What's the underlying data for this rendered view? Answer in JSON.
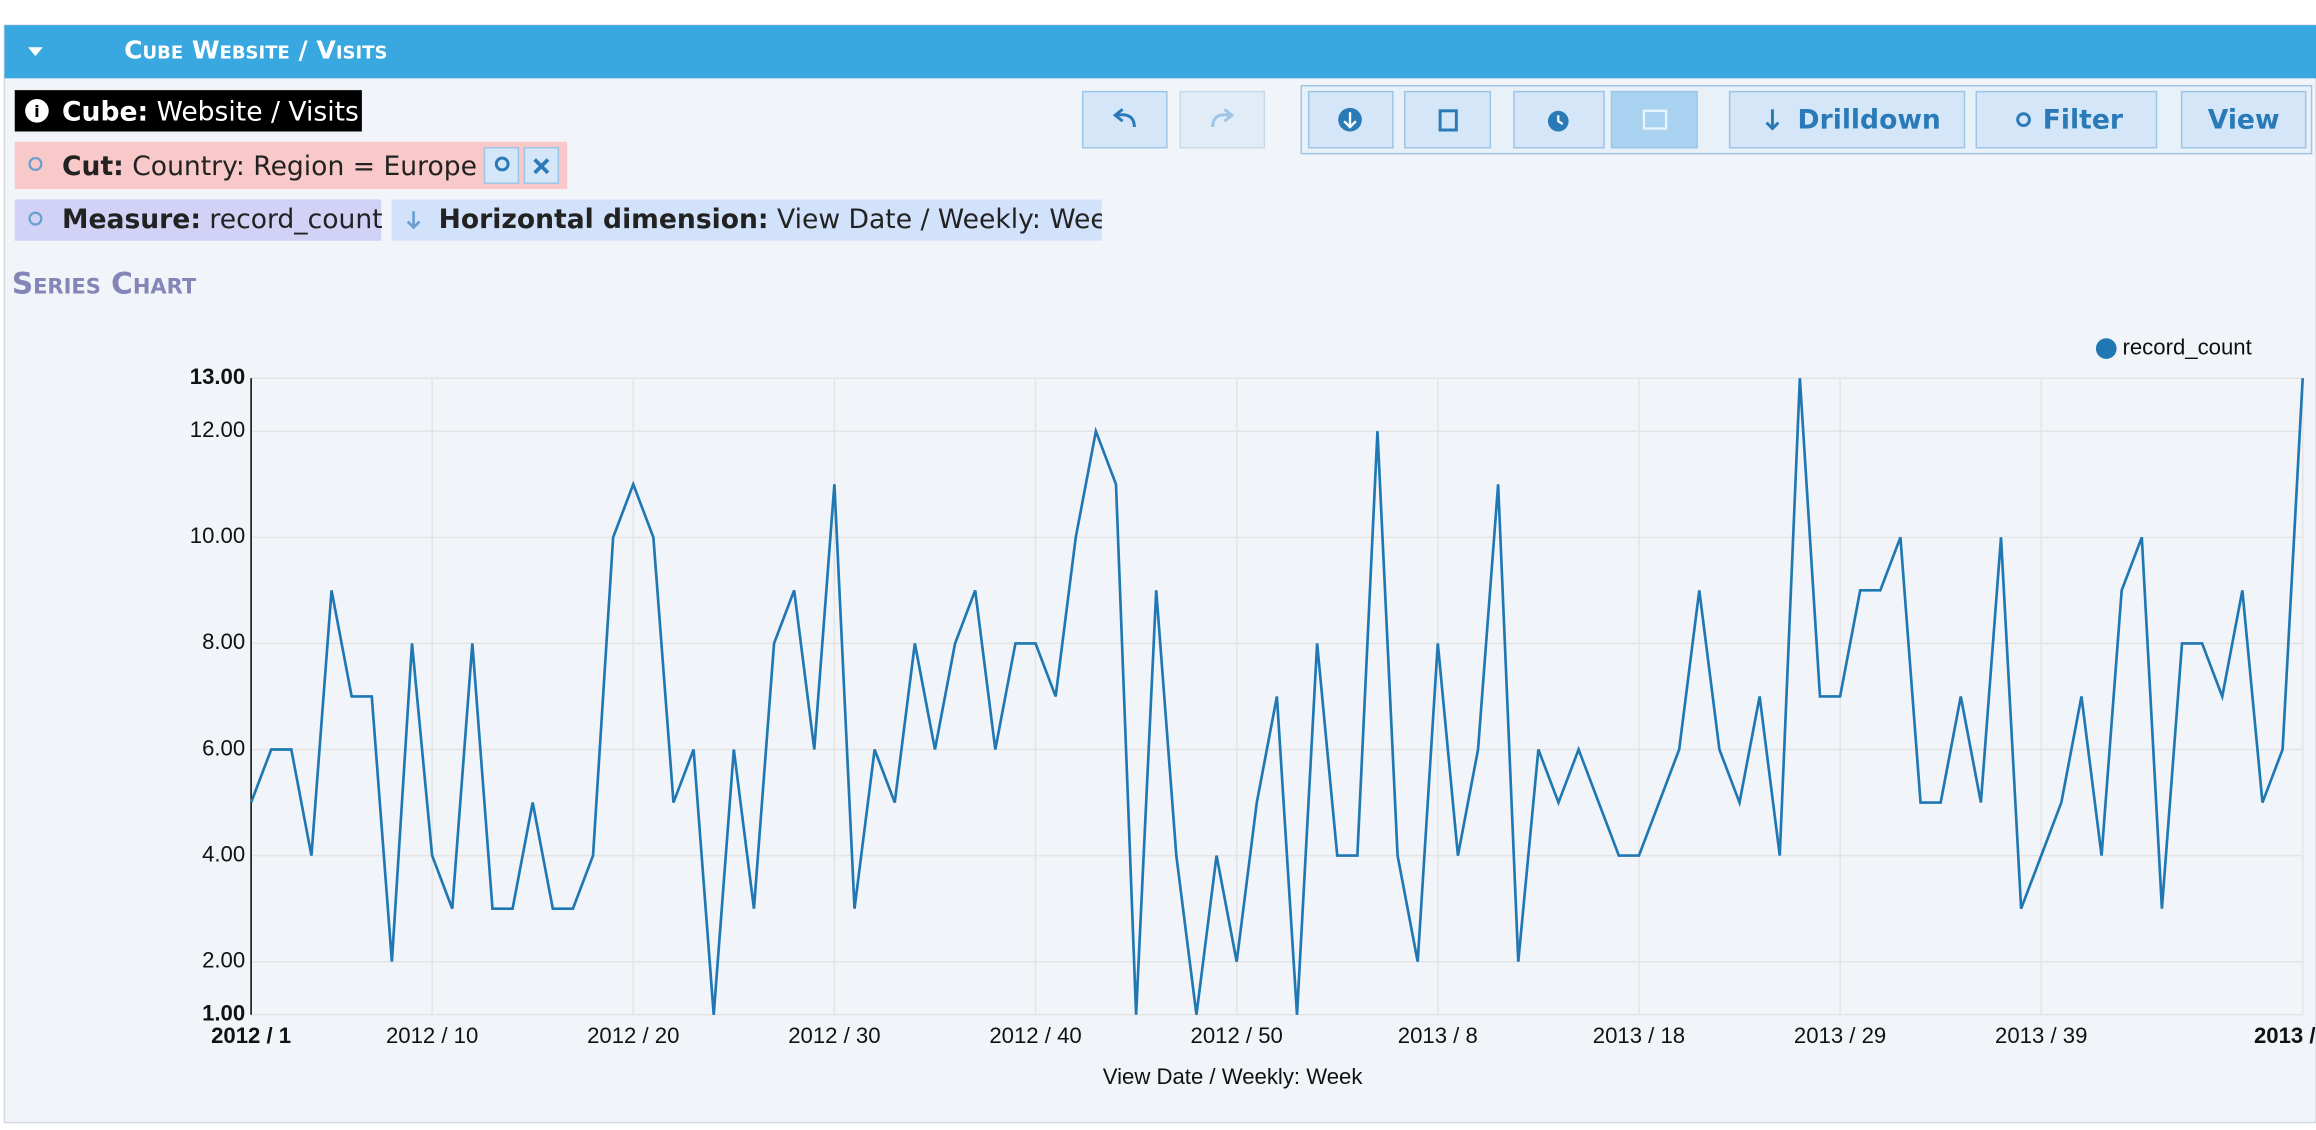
{
  "header": {
    "title": "Cube Website / Visits"
  },
  "info": {
    "cube_label": "Cube:",
    "cube_value": "Website / Visits"
  },
  "cut": {
    "label": "Cut:",
    "value": "Country: Region = Europe"
  },
  "measure": {
    "label": "Measure:",
    "value": "record_count"
  },
  "dimension": {
    "label": "Horizontal dimension:",
    "value": "View Date / Weekly: Wee"
  },
  "toolbar": {
    "buttons": [
      "Drilldown",
      "Filter",
      "View"
    ]
  },
  "section_title": "Series Chart",
  "chart_data": {
    "type": "line",
    "xlabel": "View Date / Weekly: Week",
    "categories": [
      "2012 / 1",
      null,
      null,
      null,
      null,
      null,
      null,
      null,
      null,
      "2012 / 10",
      null,
      null,
      null,
      null,
      null,
      null,
      null,
      null,
      null,
      "2012 / 20",
      null,
      null,
      null,
      null,
      null,
      null,
      null,
      null,
      null,
      "2012 / 30",
      null,
      null,
      null,
      null,
      null,
      null,
      null,
      null,
      null,
      "2012 / 40",
      null,
      null,
      null,
      null,
      null,
      null,
      null,
      null,
      null,
      "2012 / 50",
      null,
      null,
      null,
      null,
      null,
      null,
      null,
      null,
      null,
      "2013 / 8",
      null,
      null,
      null,
      null,
      null,
      null,
      null,
      null,
      null,
      "2013 / 18",
      null,
      null,
      null,
      null,
      null,
      null,
      null,
      null,
      null,
      "2013 / 29",
      null,
      null,
      null,
      null,
      null,
      null,
      null,
      null,
      null,
      "2013 / 39",
      null,
      null,
      null,
      null,
      null,
      null,
      null,
      null,
      null,
      null,
      null,
      null,
      "2013 /"
    ],
    "series": [
      {
        "name": "record_count",
        "color": "#1f77b4",
        "values": [
          5,
          6,
          6,
          4,
          9,
          7,
          7,
          2,
          8,
          4,
          3,
          8,
          3,
          3,
          5,
          3,
          3,
          4,
          10,
          11,
          10,
          5,
          6,
          1,
          6,
          3,
          8,
          9,
          6,
          11,
          3,
          6,
          5,
          8,
          6,
          8,
          9,
          6,
          8,
          8,
          7,
          10,
          12,
          11,
          1,
          9,
          4,
          1,
          4,
          2,
          5,
          7,
          1,
          8,
          4,
          4,
          12,
          4,
          2,
          8,
          4,
          6,
          11,
          2,
          6,
          5,
          6,
          5,
          4,
          4,
          5,
          6,
          9,
          6,
          5,
          7,
          4,
          13,
          7,
          7,
          9,
          9,
          10,
          5,
          5,
          7,
          5,
          10,
          3,
          4,
          5,
          7,
          4,
          9,
          10,
          3,
          8,
          8,
          7,
          9,
          5,
          6,
          13
        ]
      }
    ],
    "ylim": [
      1,
      13
    ],
    "yticks": [
      {
        "value": 1,
        "label": "1.00"
      },
      {
        "value": 2,
        "label": "2.00"
      },
      {
        "value": 4,
        "label": "4.00"
      },
      {
        "value": 6,
        "label": "6.00"
      },
      {
        "value": 8,
        "label": "8.00"
      },
      {
        "value": 10,
        "label": "10.00"
      },
      {
        "value": 12,
        "label": "12.00"
      },
      {
        "value": 13,
        "label": "13.00"
      }
    ],
    "grid": true,
    "legend": "top-right"
  }
}
